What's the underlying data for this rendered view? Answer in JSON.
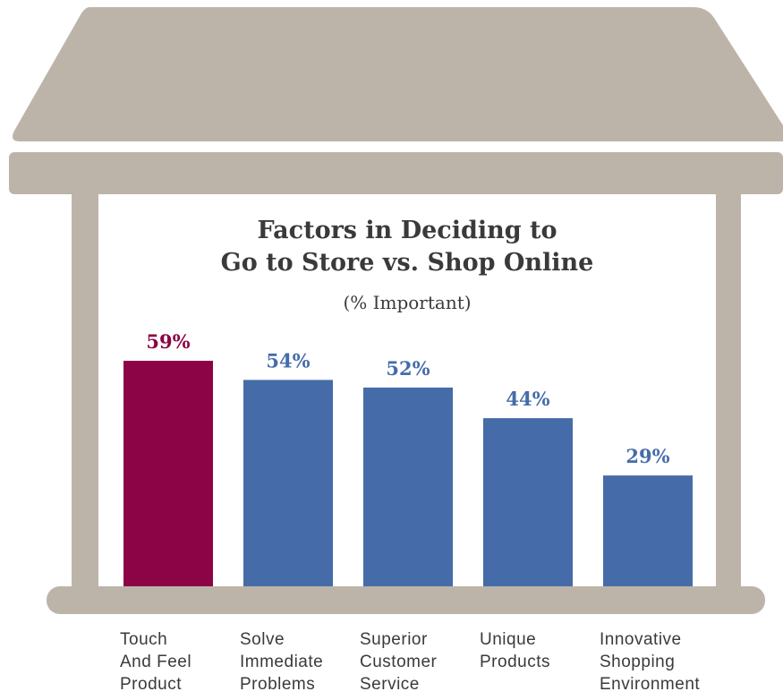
{
  "chart_data": {
    "type": "bar",
    "title": "Factors in Deciding to\nGo to Store vs. Shop Online",
    "subtitle": "(% Important)",
    "categories": [
      "Touch\nAnd Feel\nProduct",
      "Solve\nImmediate\nProblems",
      "Superior\nCustomer\nService",
      "Unique\nProducts",
      "Innovative\nShopping\nEnvironment"
    ],
    "values": [
      59,
      54,
      52,
      44,
      29
    ],
    "value_labels": [
      "59%",
      "54%",
      "52%",
      "44%",
      "29%"
    ],
    "colors": [
      "#8c0445",
      "#456ca8",
      "#456ca8",
      "#456ca8",
      "#456ca8"
    ]
  }
}
